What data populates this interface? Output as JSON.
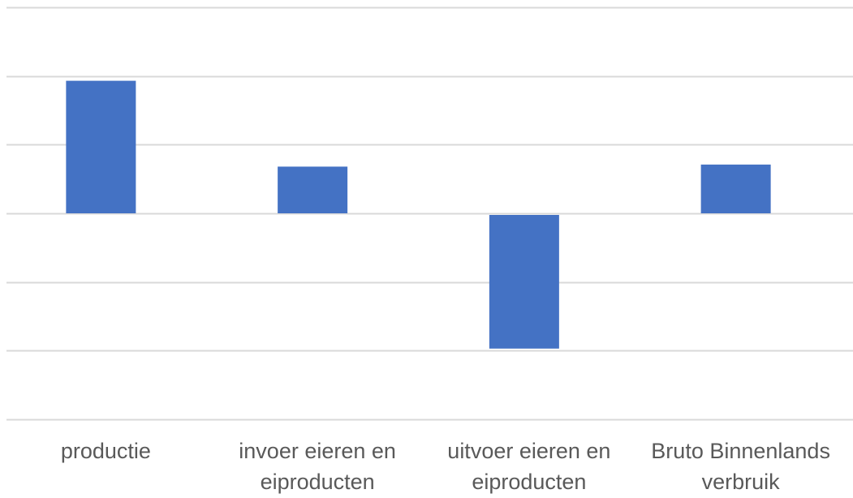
{
  "chart_data": {
    "type": "bar",
    "title": "",
    "xlabel": "",
    "ylabel": "",
    "categories": [
      "productie",
      "invoer eieren en\neiproducten",
      "uitvoer  eieren en\neiproducten",
      "Bruto Binnenlands\nverbruik"
    ],
    "series": [
      {
        "color": "#4472c4",
        "values": [
          1.93,
          0.68,
          -1.97,
          0.71
        ]
      }
    ],
    "ylim": [
      -3,
      3
    ],
    "gridlines": [
      3,
      2,
      1,
      0,
      -1,
      -2,
      -3
    ],
    "grid": true,
    "legend": "none",
    "grid_color": "#d9d9d9",
    "label_color": "#595959"
  }
}
